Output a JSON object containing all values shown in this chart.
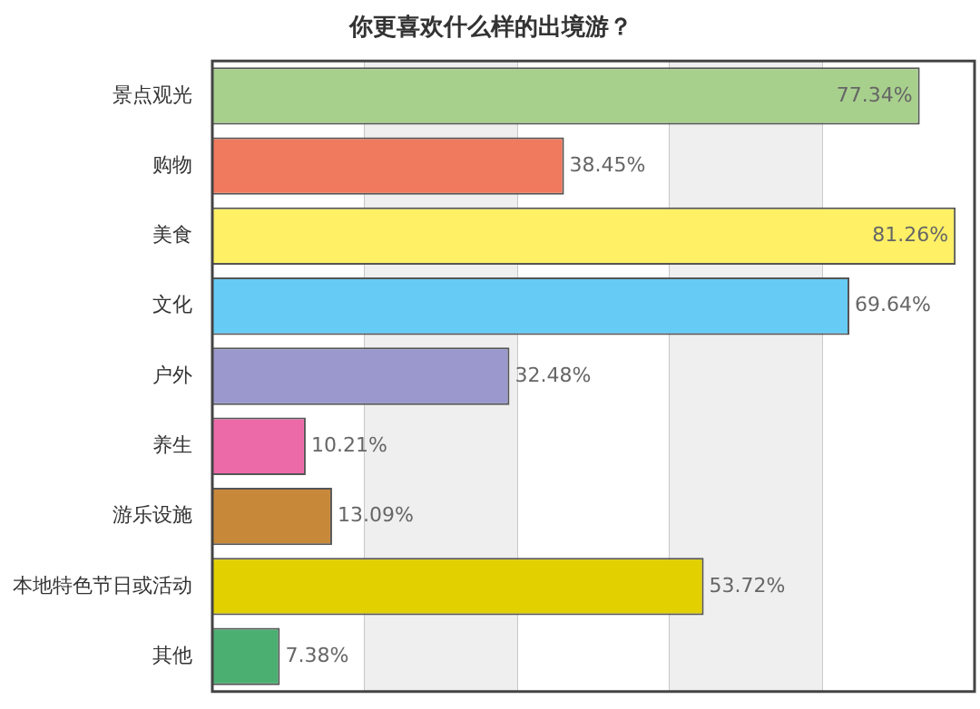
{
  "chart_data": {
    "type": "bar",
    "orientation": "horizontal",
    "title": "你更喜欢什么样的出境游？",
    "categories": [
      "景点观光",
      "购物",
      "美食",
      "文化",
      "户外",
      "养生",
      "游乐设施",
      "本地特色节日或活动",
      "其他"
    ],
    "values": [
      77.34,
      38.45,
      81.26,
      69.64,
      32.48,
      10.21,
      13.09,
      53.72,
      7.38
    ],
    "colors": [
      "#a8d08d",
      "#f07a5e",
      "#fff066",
      "#66ccf5",
      "#9a98cc",
      "#ec6aa8",
      "#c8883a",
      "#e2d000",
      "#4caf72"
    ],
    "value_labels": [
      "77.34%",
      "38.45%",
      "81.26%",
      "69.64%",
      "32.48%",
      "10.21%",
      "13.09%",
      "53.72%",
      "7.38%"
    ],
    "xlim": [
      0,
      83.33
    ],
    "xticks": [
      {
        "value": 0,
        "label": null
      },
      {
        "value": 16.67,
        "label": null
      },
      {
        "value": 33.33,
        "label": null
      },
      {
        "value": 50,
        "label": null
      },
      {
        "value": 66.67,
        "label": null
      },
      {
        "value": 83.33,
        "label": null
      }
    ],
    "bands": [
      {
        "axis": "x",
        "from": 16.67,
        "to": 33.33,
        "color": "#efefef"
      },
      {
        "axis": "x",
        "from": 50,
        "to": 66.67,
        "color": "#efefef"
      }
    ],
    "grid": "x",
    "legend": false,
    "tick_labels": "y"
  }
}
